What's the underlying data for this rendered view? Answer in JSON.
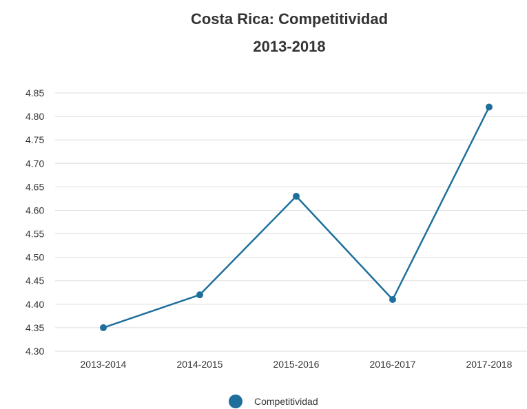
{
  "chart_data": {
    "type": "line",
    "title_lines": [
      "Costa Rica: Competitividad",
      "2013-2018"
    ],
    "categories": [
      "2013-2014",
      "2014-2015",
      "2015-2016",
      "2016-2017",
      "2017-2018"
    ],
    "series": [
      {
        "name": "Competitividad",
        "values": [
          4.35,
          4.42,
          4.63,
          4.41,
          4.82
        ],
        "color": "#1f6f9c"
      }
    ],
    "y_ticks": [
      "4.30",
      "4.35",
      "4.40",
      "4.45",
      "4.50",
      "4.55",
      "4.60",
      "4.65",
      "4.70",
      "4.75",
      "4.80",
      "4.85"
    ],
    "ylim": [
      4.3,
      4.85
    ],
    "grid": true,
    "legend_position": "bottom-center",
    "grid_color": "#dddddd",
    "xlabel": "",
    "ylabel": ""
  }
}
